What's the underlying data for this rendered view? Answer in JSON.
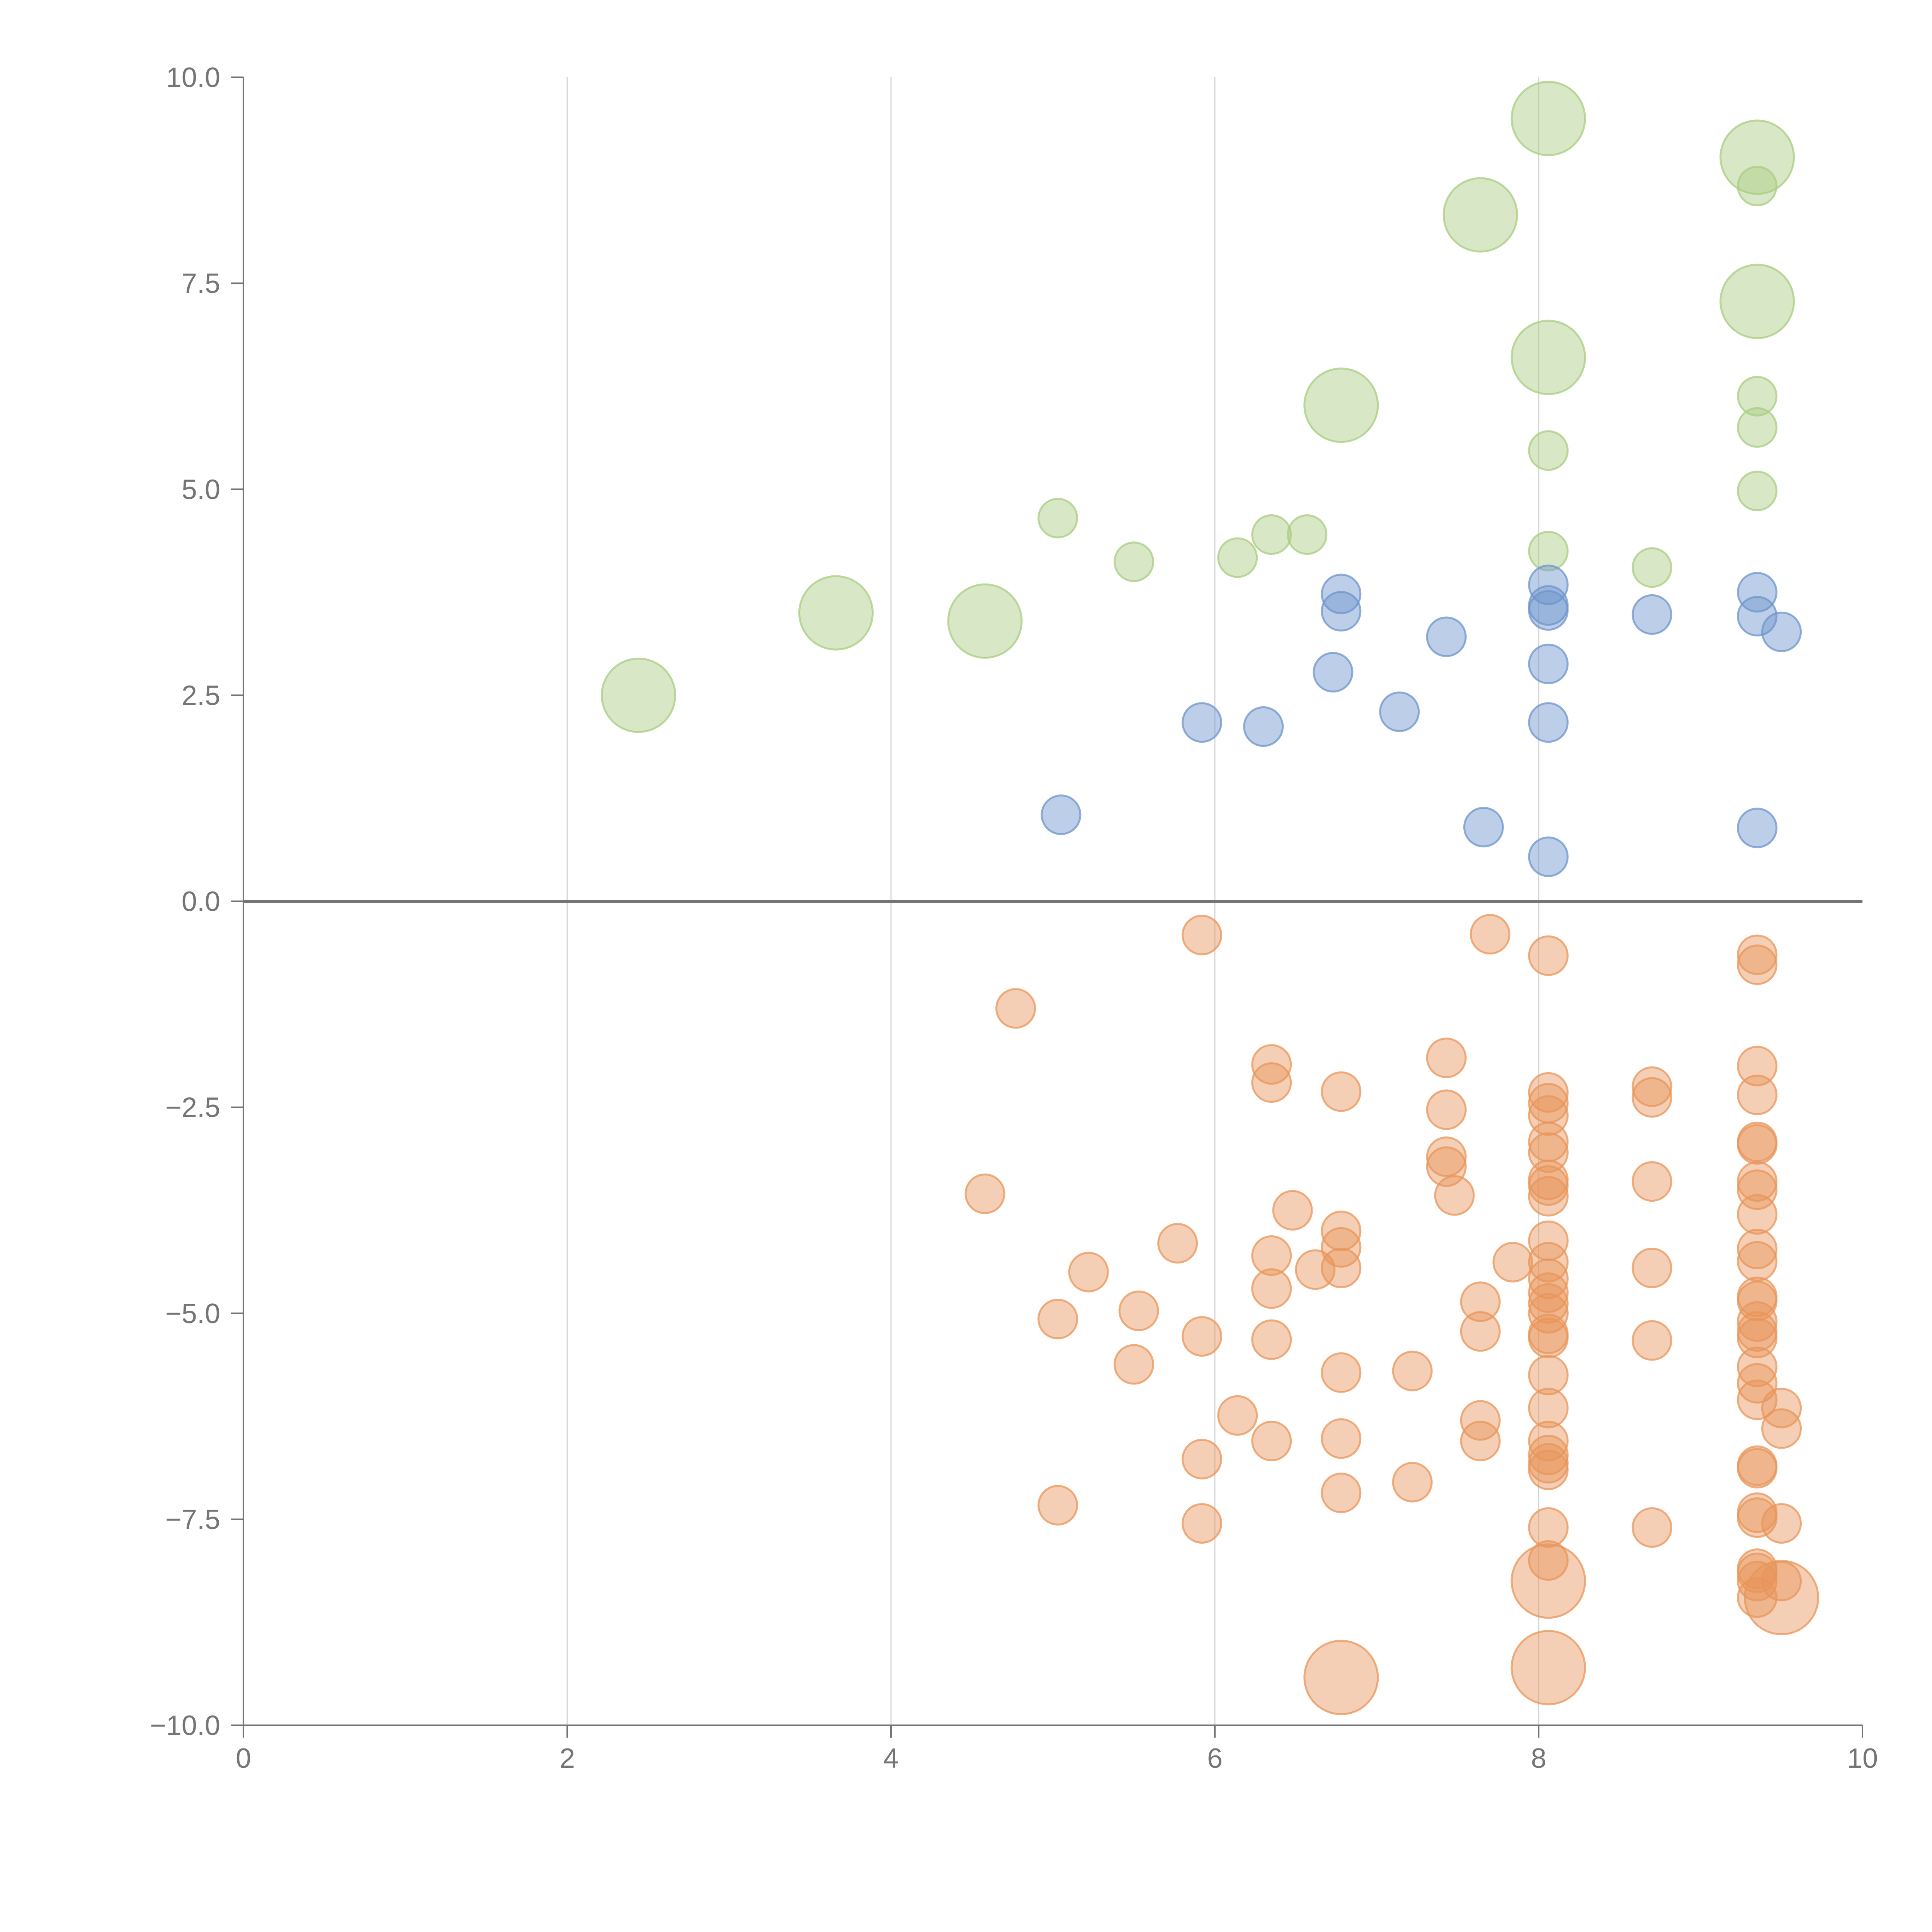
{
  "chart_data": {
    "type": "scatter",
    "title": "",
    "xlabel": "",
    "ylabel": "",
    "xlim": [
      0,
      10
    ],
    "ylim": [
      -10,
      10
    ],
    "x_ticks": [
      "0",
      "2",
      "4",
      "6",
      "8",
      "10"
    ],
    "y_ticks": [
      "10.0",
      "7.5",
      "5.0",
      "2.5",
      "0.0",
      "−2.5",
      "−5.0",
      "−7.5",
      "−10.0"
    ],
    "grid": "vertical gridlines at x = 2, 4, 6, 8",
    "legend": "none",
    "series": [
      {
        "color": "#a9cc81",
        "points": [
          {
            "x": 2.44,
            "y": 2.5,
            "r": "large"
          },
          {
            "x": 3.66,
            "y": 3.5,
            "r": "large"
          },
          {
            "x": 4.58,
            "y": 3.4,
            "r": "large"
          },
          {
            "x": 5.03,
            "y": 4.65,
            "r": "small"
          },
          {
            "x": 5.5,
            "y": 4.12,
            "r": "small"
          },
          {
            "x": 6.14,
            "y": 4.17,
            "r": "small"
          },
          {
            "x": 6.35,
            "y": 4.45,
            "r": "small"
          },
          {
            "x": 6.57,
            "y": 4.45,
            "r": "small"
          },
          {
            "x": 6.78,
            "y": 6.02,
            "r": "large"
          },
          {
            "x": 7.64,
            "y": 8.33,
            "r": "large"
          },
          {
            "x": 8.06,
            "y": 9.5,
            "r": "large"
          },
          {
            "x": 8.06,
            "y": 6.6,
            "r": "large"
          },
          {
            "x": 8.06,
            "y": 5.47,
            "r": "small"
          },
          {
            "x": 8.06,
            "y": 4.25,
            "r": "small"
          },
          {
            "x": 8.7,
            "y": 4.05,
            "r": "small"
          },
          {
            "x": 9.35,
            "y": 9.03,
            "r": "large"
          },
          {
            "x": 9.35,
            "y": 8.68,
            "r": "small"
          },
          {
            "x": 9.35,
            "y": 7.28,
            "r": "large"
          },
          {
            "x": 9.35,
            "y": 6.13,
            "r": "small"
          },
          {
            "x": 9.35,
            "y": 5.75,
            "r": "small"
          },
          {
            "x": 9.35,
            "y": 4.98,
            "r": "small"
          }
        ]
      },
      {
        "color": "#6d94cc",
        "points": [
          {
            "x": 5.05,
            "y": 1.05
          },
          {
            "x": 5.92,
            "y": 2.17
          },
          {
            "x": 6.3,
            "y": 2.12
          },
          {
            "x": 6.73,
            "y": 2.78
          },
          {
            "x": 6.78,
            "y": 3.73
          },
          {
            "x": 6.78,
            "y": 3.52
          },
          {
            "x": 7.14,
            "y": 2.3
          },
          {
            "x": 7.43,
            "y": 3.21
          },
          {
            "x": 7.66,
            "y": 0.9
          },
          {
            "x": 8.06,
            "y": 3.84
          },
          {
            "x": 8.06,
            "y": 3.59
          },
          {
            "x": 8.06,
            "y": 3.53
          },
          {
            "x": 8.06,
            "y": 2.88
          },
          {
            "x": 8.06,
            "y": 2.17
          },
          {
            "x": 8.06,
            "y": 0.54
          },
          {
            "x": 8.7,
            "y": 3.48
          },
          {
            "x": 9.35,
            "y": 3.75
          },
          {
            "x": 9.35,
            "y": 3.46
          },
          {
            "x": 9.5,
            "y": 3.27
          },
          {
            "x": 9.35,
            "y": 0.89
          }
        ]
      },
      {
        "color": "#e8955a",
        "points": [
          {
            "x": 4.58,
            "y": -3.55
          },
          {
            "x": 4.77,
            "y": -1.3
          },
          {
            "x": 5.03,
            "y": -5.07
          },
          {
            "x": 5.03,
            "y": -7.33
          },
          {
            "x": 5.22,
            "y": -4.5
          },
          {
            "x": 5.5,
            "y": -5.62
          },
          {
            "x": 5.53,
            "y": -4.97
          },
          {
            "x": 5.77,
            "y": -4.15
          },
          {
            "x": 5.92,
            "y": -0.41
          },
          {
            "x": 5.92,
            "y": -5.28
          },
          {
            "x": 5.92,
            "y": -6.77
          },
          {
            "x": 5.92,
            "y": -7.55
          },
          {
            "x": 6.14,
            "y": -6.24
          },
          {
            "x": 6.35,
            "y": -1.98
          },
          {
            "x": 6.35,
            "y": -2.2
          },
          {
            "x": 6.35,
            "y": -4.3
          },
          {
            "x": 6.35,
            "y": -4.7
          },
          {
            "x": 6.35,
            "y": -5.32
          },
          {
            "x": 6.35,
            "y": -6.55
          },
          {
            "x": 6.48,
            "y": -3.75
          },
          {
            "x": 6.62,
            "y": -4.47
          },
          {
            "x": 6.78,
            "y": -2.31
          },
          {
            "x": 6.78,
            "y": -4.0
          },
          {
            "x": 6.78,
            "y": -4.2
          },
          {
            "x": 6.78,
            "y": -4.45
          },
          {
            "x": 6.78,
            "y": -5.72
          },
          {
            "x": 6.78,
            "y": -6.52
          },
          {
            "x": 6.78,
            "y": -7.18
          },
          {
            "x": 6.78,
            "y": -9.42,
            "r": "large"
          },
          {
            "x": 7.22,
            "y": -5.7
          },
          {
            "x": 7.22,
            "y": -7.05
          },
          {
            "x": 7.43,
            "y": -1.9
          },
          {
            "x": 7.43,
            "y": -2.53
          },
          {
            "x": 7.43,
            "y": -3.1
          },
          {
            "x": 7.43,
            "y": -3.22
          },
          {
            "x": 7.48,
            "y": -3.57
          },
          {
            "x": 7.64,
            "y": -4.86
          },
          {
            "x": 7.64,
            "y": -5.22
          },
          {
            "x": 7.64,
            "y": -6.3
          },
          {
            "x": 7.64,
            "y": -6.55
          },
          {
            "x": 7.7,
            "y": -0.4
          },
          {
            "x": 7.84,
            "y": -4.38
          },
          {
            "x": 8.06,
            "y": -0.66
          },
          {
            "x": 8.06,
            "y": -2.32
          },
          {
            "x": 8.06,
            "y": -2.45
          },
          {
            "x": 8.06,
            "y": -2.6
          },
          {
            "x": 8.06,
            "y": -2.92
          },
          {
            "x": 8.06,
            "y": -3.05
          },
          {
            "x": 8.06,
            "y": -3.38
          },
          {
            "x": 8.06,
            "y": -3.45
          },
          {
            "x": 8.06,
            "y": -3.58
          },
          {
            "x": 8.06,
            "y": -4.12
          },
          {
            "x": 8.06,
            "y": -4.38
          },
          {
            "x": 8.06,
            "y": -4.58
          },
          {
            "x": 8.06,
            "y": -4.75
          },
          {
            "x": 8.06,
            "y": -4.88
          },
          {
            "x": 8.06,
            "y": -5.0
          },
          {
            "x": 8.06,
            "y": -5.25
          },
          {
            "x": 8.06,
            "y": -5.3
          },
          {
            "x": 8.06,
            "y": -5.75
          },
          {
            "x": 8.06,
            "y": -6.15
          },
          {
            "x": 8.06,
            "y": -6.55
          },
          {
            "x": 8.06,
            "y": -6.72
          },
          {
            "x": 8.06,
            "y": -6.82
          },
          {
            "x": 8.06,
            "y": -6.9
          },
          {
            "x": 8.06,
            "y": -7.6
          },
          {
            "x": 8.06,
            "y": -8.0
          },
          {
            "x": 8.06,
            "y": -8.25,
            "r": "large"
          },
          {
            "x": 8.06,
            "y": -9.3,
            "r": "large"
          },
          {
            "x": 8.7,
            "y": -2.25
          },
          {
            "x": 8.7,
            "y": -2.38
          },
          {
            "x": 8.7,
            "y": -3.4
          },
          {
            "x": 8.7,
            "y": -4.45
          },
          {
            "x": 8.7,
            "y": -5.33
          },
          {
            "x": 8.7,
            "y": -7.6
          },
          {
            "x": 9.35,
            "y": -0.65
          },
          {
            "x": 9.35,
            "y": -0.77
          },
          {
            "x": 9.35,
            "y": -2.0
          },
          {
            "x": 9.35,
            "y": -2.35
          },
          {
            "x": 9.35,
            "y": -2.92
          },
          {
            "x": 9.35,
            "y": -2.95
          },
          {
            "x": 9.35,
            "y": -3.4
          },
          {
            "x": 9.35,
            "y": -3.5
          },
          {
            "x": 9.35,
            "y": -3.8
          },
          {
            "x": 9.35,
            "y": -4.22
          },
          {
            "x": 9.35,
            "y": -4.37
          },
          {
            "x": 9.35,
            "y": -4.8
          },
          {
            "x": 9.35,
            "y": -4.85
          },
          {
            "x": 9.35,
            "y": -5.1
          },
          {
            "x": 9.35,
            "y": -5.22
          },
          {
            "x": 9.35,
            "y": -5.3
          },
          {
            "x": 9.35,
            "y": -5.65
          },
          {
            "x": 9.35,
            "y": -5.85
          },
          {
            "x": 9.35,
            "y": -6.05
          },
          {
            "x": 9.5,
            "y": -6.15
          },
          {
            "x": 9.5,
            "y": -6.4
          },
          {
            "x": 9.35,
            "y": -6.85
          },
          {
            "x": 9.35,
            "y": -6.88
          },
          {
            "x": 9.35,
            "y": -7.42
          },
          {
            "x": 9.35,
            "y": -7.48
          },
          {
            "x": 9.5,
            "y": -7.55
          },
          {
            "x": 9.35,
            "y": -8.1
          },
          {
            "x": 9.35,
            "y": -8.15
          },
          {
            "x": 9.35,
            "y": -8.25
          },
          {
            "x": 9.5,
            "y": -8.25
          },
          {
            "x": 9.35,
            "y": -8.45
          },
          {
            "x": 9.5,
            "y": -8.45,
            "r": "large"
          }
        ]
      }
    ]
  }
}
